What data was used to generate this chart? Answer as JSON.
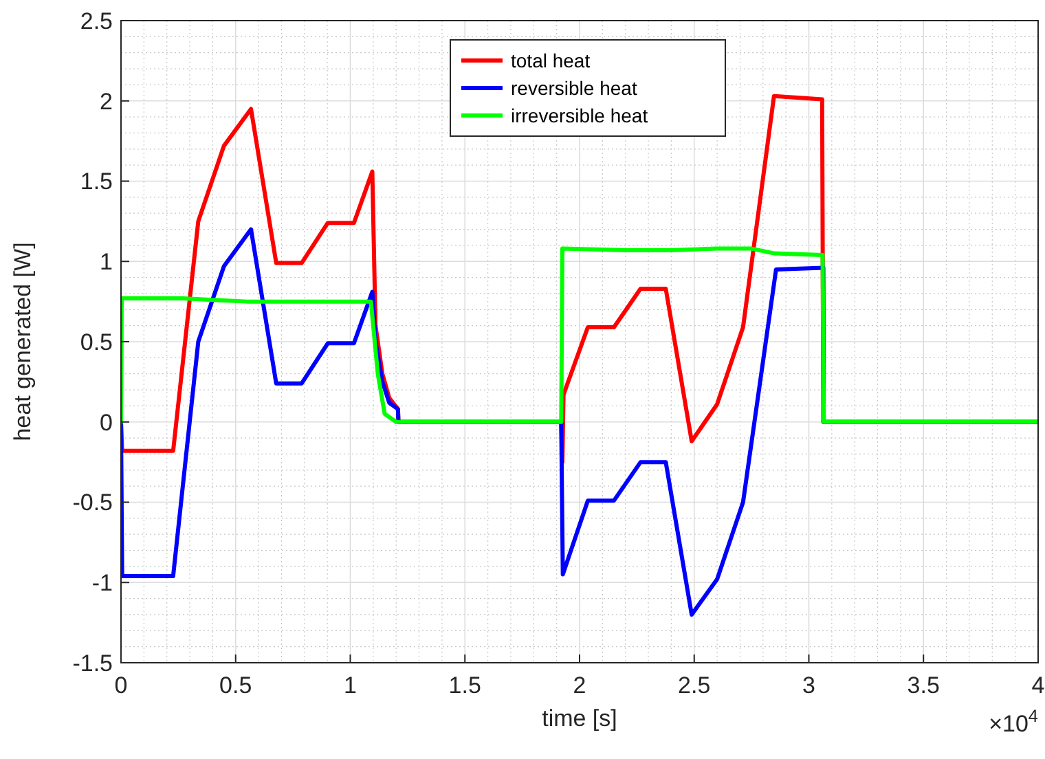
{
  "chart_data": {
    "type": "line",
    "xlabel": "time [s]",
    "ylabel": "heat generated [W]",
    "annotations": [
      "×10$^{4}$"
    ],
    "xlim": [
      0,
      4
    ],
    "xticks": [
      0,
      0.5,
      1,
      1.5,
      2,
      2.5,
      3,
      3.5,
      4
    ],
    "ylim": [
      -1.5,
      2.5
    ],
    "yticks": [
      -1.5,
      -1,
      -0.5,
      0,
      0.5,
      1,
      1.5,
      2,
      2.5
    ],
    "grid": true,
    "legend": "top",
    "line_style": "solid",
    "marker": "none",
    "series": [
      {
        "name": "total heat",
        "color": "#ff0000",
        "x": [
          0,
          0.005,
          0.2275,
          0.337,
          0.449,
          0.567,
          0.677,
          0.788,
          0.902,
          1.016,
          1.096,
          1.11,
          1.14,
          1.17,
          1.208,
          1.21,
          1.92,
          1.925,
          1.93,
          2.036,
          2.15,
          2.266,
          2.376,
          2.489,
          2.6,
          2.713,
          2.848,
          3.058,
          3.063,
          4
        ],
        "values": [
          0,
          -0.18,
          -0.18,
          1.25,
          1.72,
          1.95,
          0.99,
          0.99,
          1.24,
          1.24,
          1.56,
          0.6,
          0.3,
          0.15,
          0.08,
          0,
          0,
          -0.25,
          0.17,
          0.59,
          0.59,
          0.83,
          0.83,
          -0.12,
          0.11,
          0.59,
          2.03,
          2.01,
          0,
          0
        ]
      },
      {
        "name": "reversible heat",
        "color": "#0000ff",
        "x": [
          0,
          0.005,
          0.2275,
          0.337,
          0.449,
          0.567,
          0.677,
          0.788,
          0.902,
          1.016,
          1.096,
          1.11,
          1.14,
          1.17,
          1.208,
          1.21,
          1.92,
          1.927,
          2.036,
          2.15,
          2.266,
          2.376,
          2.489,
          2.6,
          2.713,
          2.857,
          3.063,
          3.065,
          4
        ],
        "values": [
          0,
          -0.96,
          -0.96,
          0.5,
          0.97,
          1.2,
          0.24,
          0.24,
          0.49,
          0.49,
          0.81,
          0.5,
          0.25,
          0.12,
          0.08,
          0,
          0,
          -0.95,
          -0.49,
          -0.49,
          -0.25,
          -0.25,
          -1.2,
          -0.98,
          -0.5,
          0.95,
          0.96,
          0,
          0
        ]
      },
      {
        "name": "irreversible heat",
        "color": "#00ff00",
        "x": [
          0,
          0.003,
          0.27,
          0.4,
          0.55,
          1.09,
          1.12,
          1.15,
          1.2,
          1.92,
          1.925,
          2.2,
          2.4,
          2.6,
          2.75,
          2.85,
          3.06,
          3.065,
          4
        ],
        "values": [
          0,
          0.77,
          0.77,
          0.76,
          0.75,
          0.75,
          0.3,
          0.05,
          0,
          0,
          1.08,
          1.07,
          1.07,
          1.08,
          1.08,
          1.05,
          1.04,
          0,
          0
        ]
      }
    ]
  }
}
